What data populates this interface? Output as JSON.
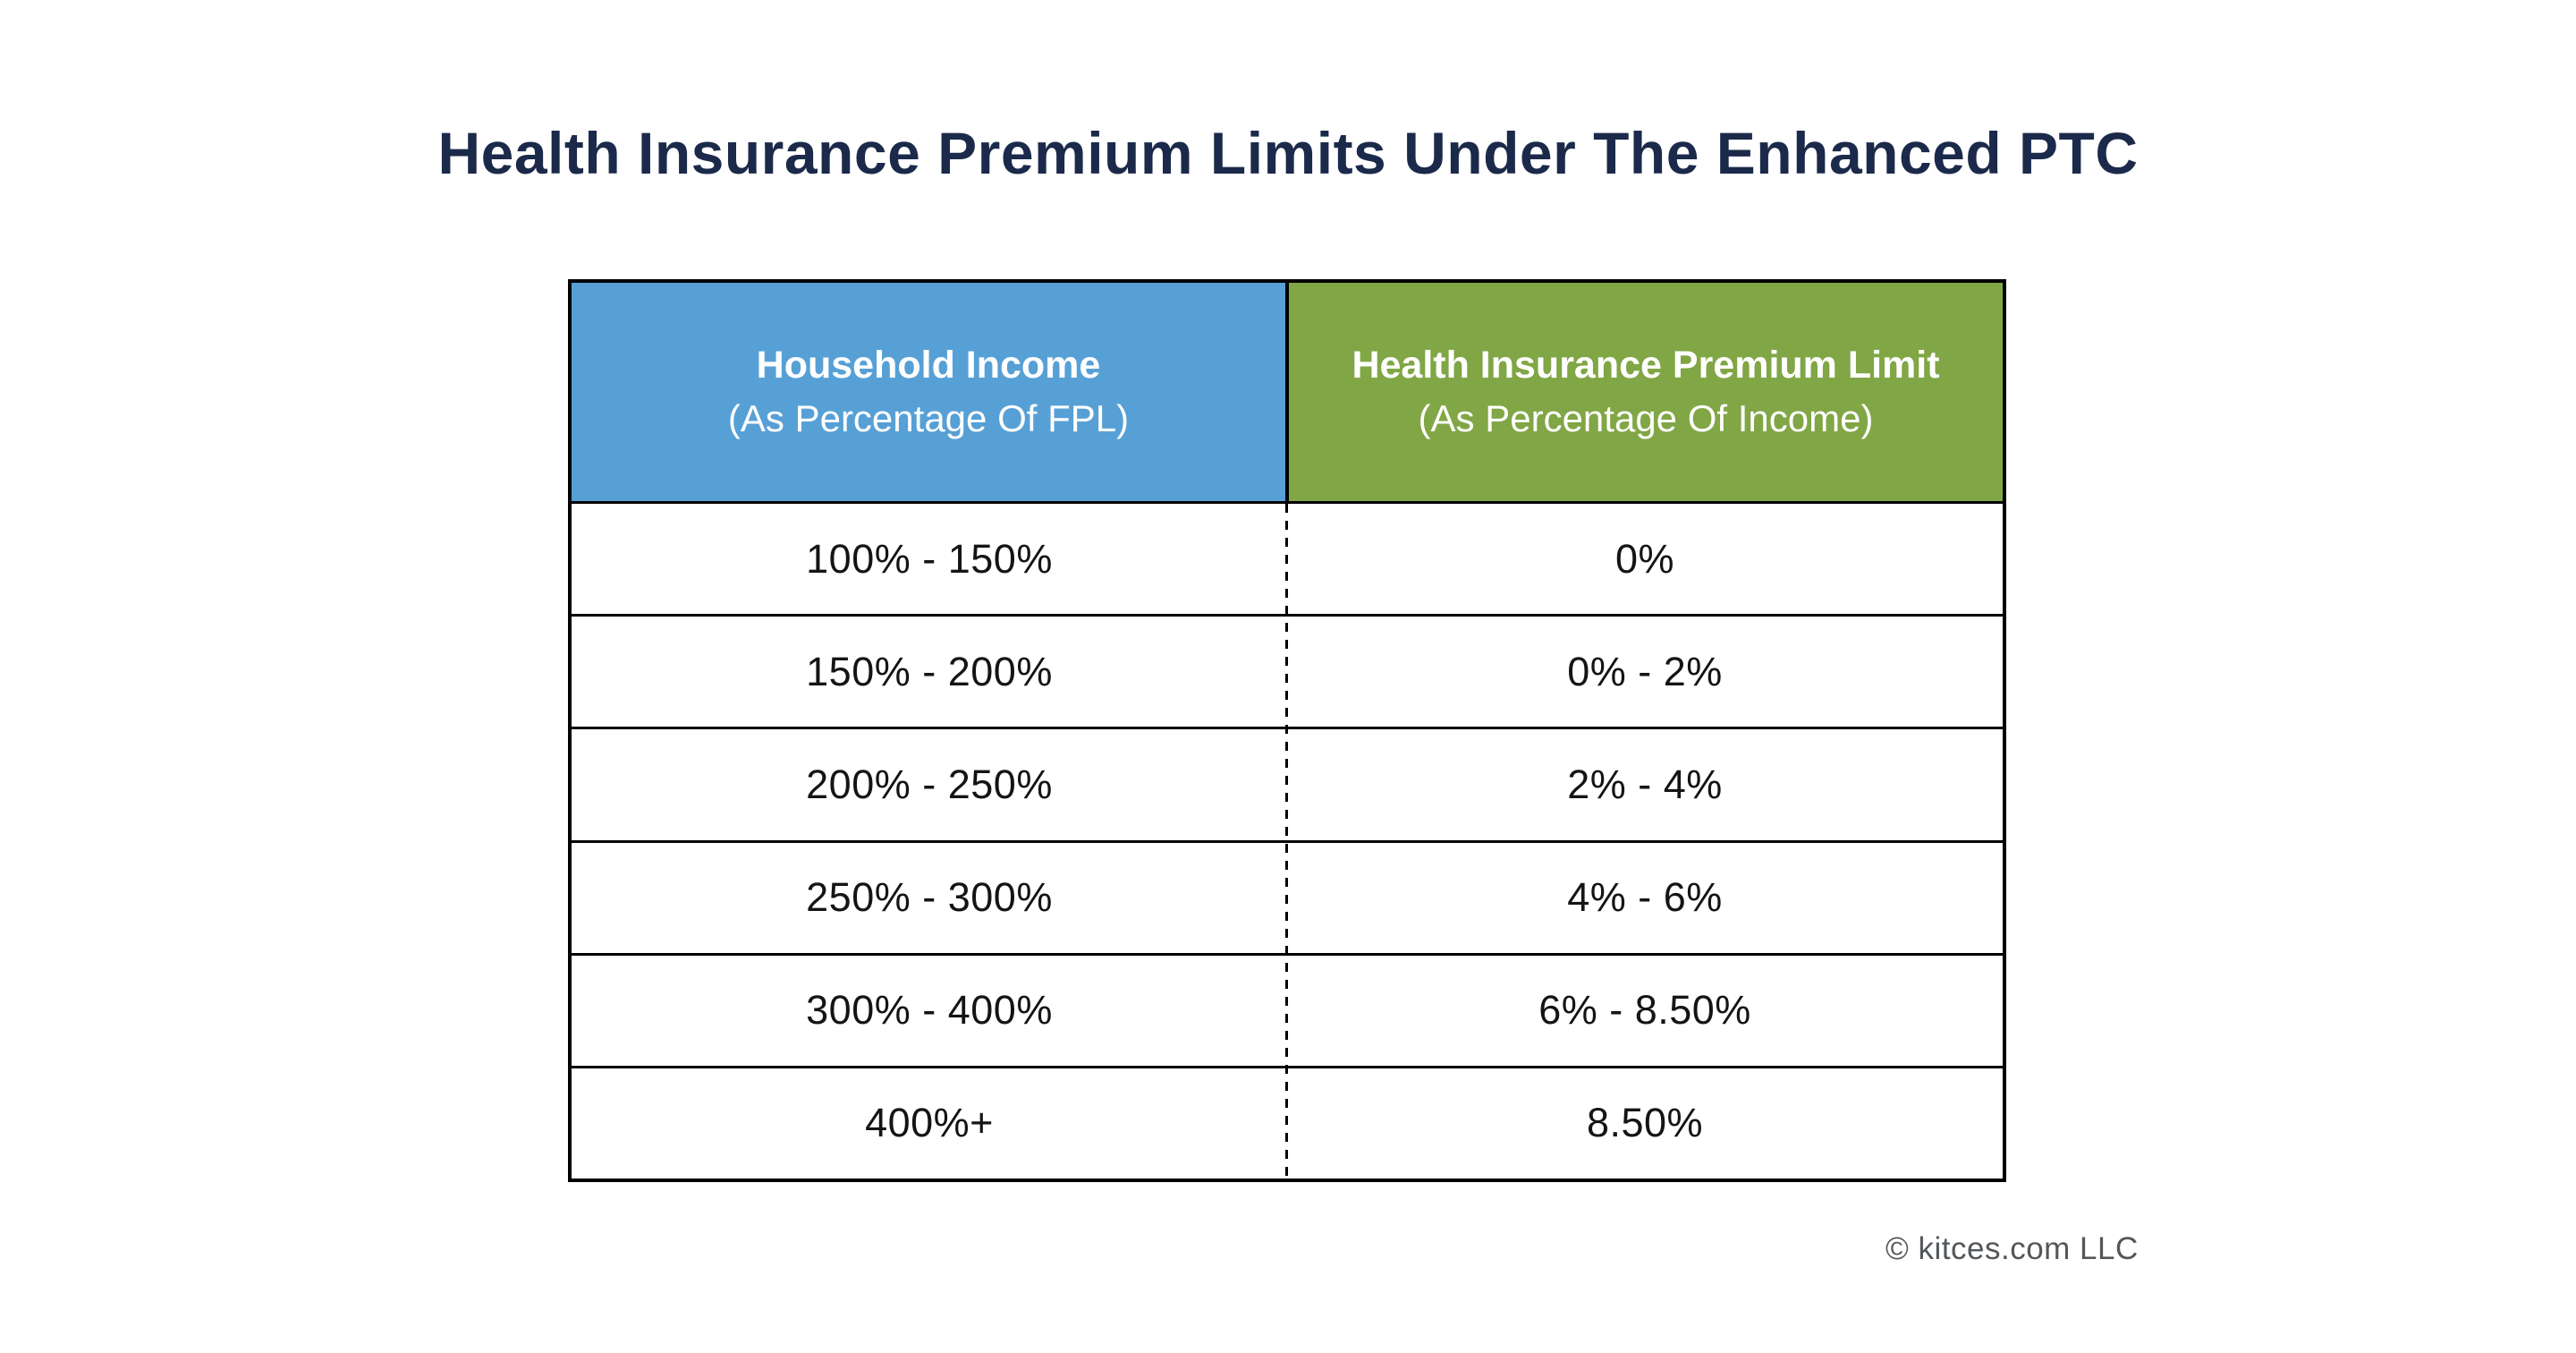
{
  "title": {
    "text": "Health Insurance Premium Limits Under The Enhanced PTC"
  },
  "colors": {
    "title_navy": "#1b2a4a",
    "header_blue": "#57a0d6",
    "header_green": "#81a645",
    "border_black": "#000000",
    "body_text": "#141414",
    "header_text": "#ffffff",
    "footer_gray": "#53575a",
    "background": "#ffffff"
  },
  "table": {
    "columns": [
      {
        "title": "Household Income",
        "subtitle": "(As Percentage Of FPL)"
      },
      {
        "title": "Health Insurance Premium Limit",
        "subtitle": "(As Percentage Of Income)"
      }
    ],
    "rows": [
      {
        "income": "100% - 150%",
        "limit": "0%"
      },
      {
        "income": "150% - 200%",
        "limit": "0% - 2%"
      },
      {
        "income": "200% - 250%",
        "limit": "2% - 4%"
      },
      {
        "income": "250% - 300%",
        "limit": "4% - 6%"
      },
      {
        "income": "300% - 400%",
        "limit": "6% - 8.50%"
      },
      {
        "income": "400%+",
        "limit": "8.50%"
      }
    ]
  },
  "footer": {
    "copyright": "© kitces.com LLC"
  },
  "chart_data": {
    "type": "table",
    "title": "Health Insurance Premium Limits Under The Enhanced PTC",
    "columns": [
      "Household Income (As Percentage Of FPL)",
      "Health Insurance Premium Limit (As Percentage Of Income)"
    ],
    "rows": [
      [
        "100% - 150%",
        "0%"
      ],
      [
        "150% - 200%",
        "0% - 2%"
      ],
      [
        "200% - 250%",
        "2% - 4%"
      ],
      [
        "250% - 300%",
        "4% - 6%"
      ],
      [
        "300% - 400%",
        "6% - 8.50%"
      ],
      [
        "400%+",
        "8.50%"
      ]
    ],
    "source": "© kitces.com LLC"
  }
}
